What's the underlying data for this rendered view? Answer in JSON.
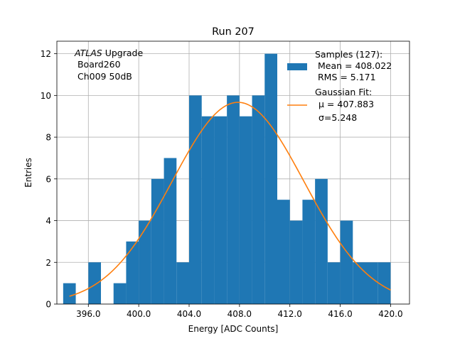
{
  "chart_data": {
    "type": "histogram",
    "title": "Run 207",
    "xlabel": "Energy [ADC Counts]",
    "ylabel": "Entries",
    "xlim": [
      393.5,
      421.5
    ],
    "ylim": [
      0,
      12.6
    ],
    "grid": true,
    "x_ticks": [
      396,
      400,
      404,
      408,
      412,
      416,
      420
    ],
    "x_tick_labels": [
      "396.0",
      "400.0",
      "404.0",
      "408.0",
      "412.0",
      "416.0",
      "420.0"
    ],
    "y_ticks": [
      0,
      2,
      4,
      6,
      8,
      10,
      12
    ],
    "y_tick_labels": [
      "0",
      "2",
      "4",
      "6",
      "8",
      "10",
      "12"
    ],
    "bin_width": 1,
    "bin_start": 394,
    "counts": [
      1,
      0,
      2,
      0,
      1,
      3,
      4,
      6,
      7,
      2,
      10,
      9,
      9,
      10,
      9,
      10,
      12,
      5,
      4,
      5,
      6,
      2,
      4,
      2,
      2,
      2
    ],
    "hist_color": "#1f77b4",
    "gaussian_fit": {
      "mu": 407.883,
      "sigma": 5.248,
      "amplitude": 9.67,
      "x_range": [
        394.5,
        420.0
      ],
      "color": "#ff7f0e"
    },
    "annotation": {
      "lines": [
        "ATLAS Upgrade",
        " Board260",
        " Ch009 50dB"
      ],
      "italic_word": "ATLAS",
      "upright_rest": " Upgrade",
      "position": "top-left"
    },
    "legend": {
      "position": "top-right",
      "entries": [
        {
          "kind": "patch",
          "color": "#1f77b4",
          "lines": [
            "Samples (127):",
            " Mean = 408.022",
            " RMS = 5.171"
          ]
        },
        {
          "kind": "line",
          "color": "#ff7f0e",
          "lines": [
            "Gaussian Fit:",
            "μ = 407.883",
            "σ=5.248"
          ]
        }
      ]
    }
  }
}
